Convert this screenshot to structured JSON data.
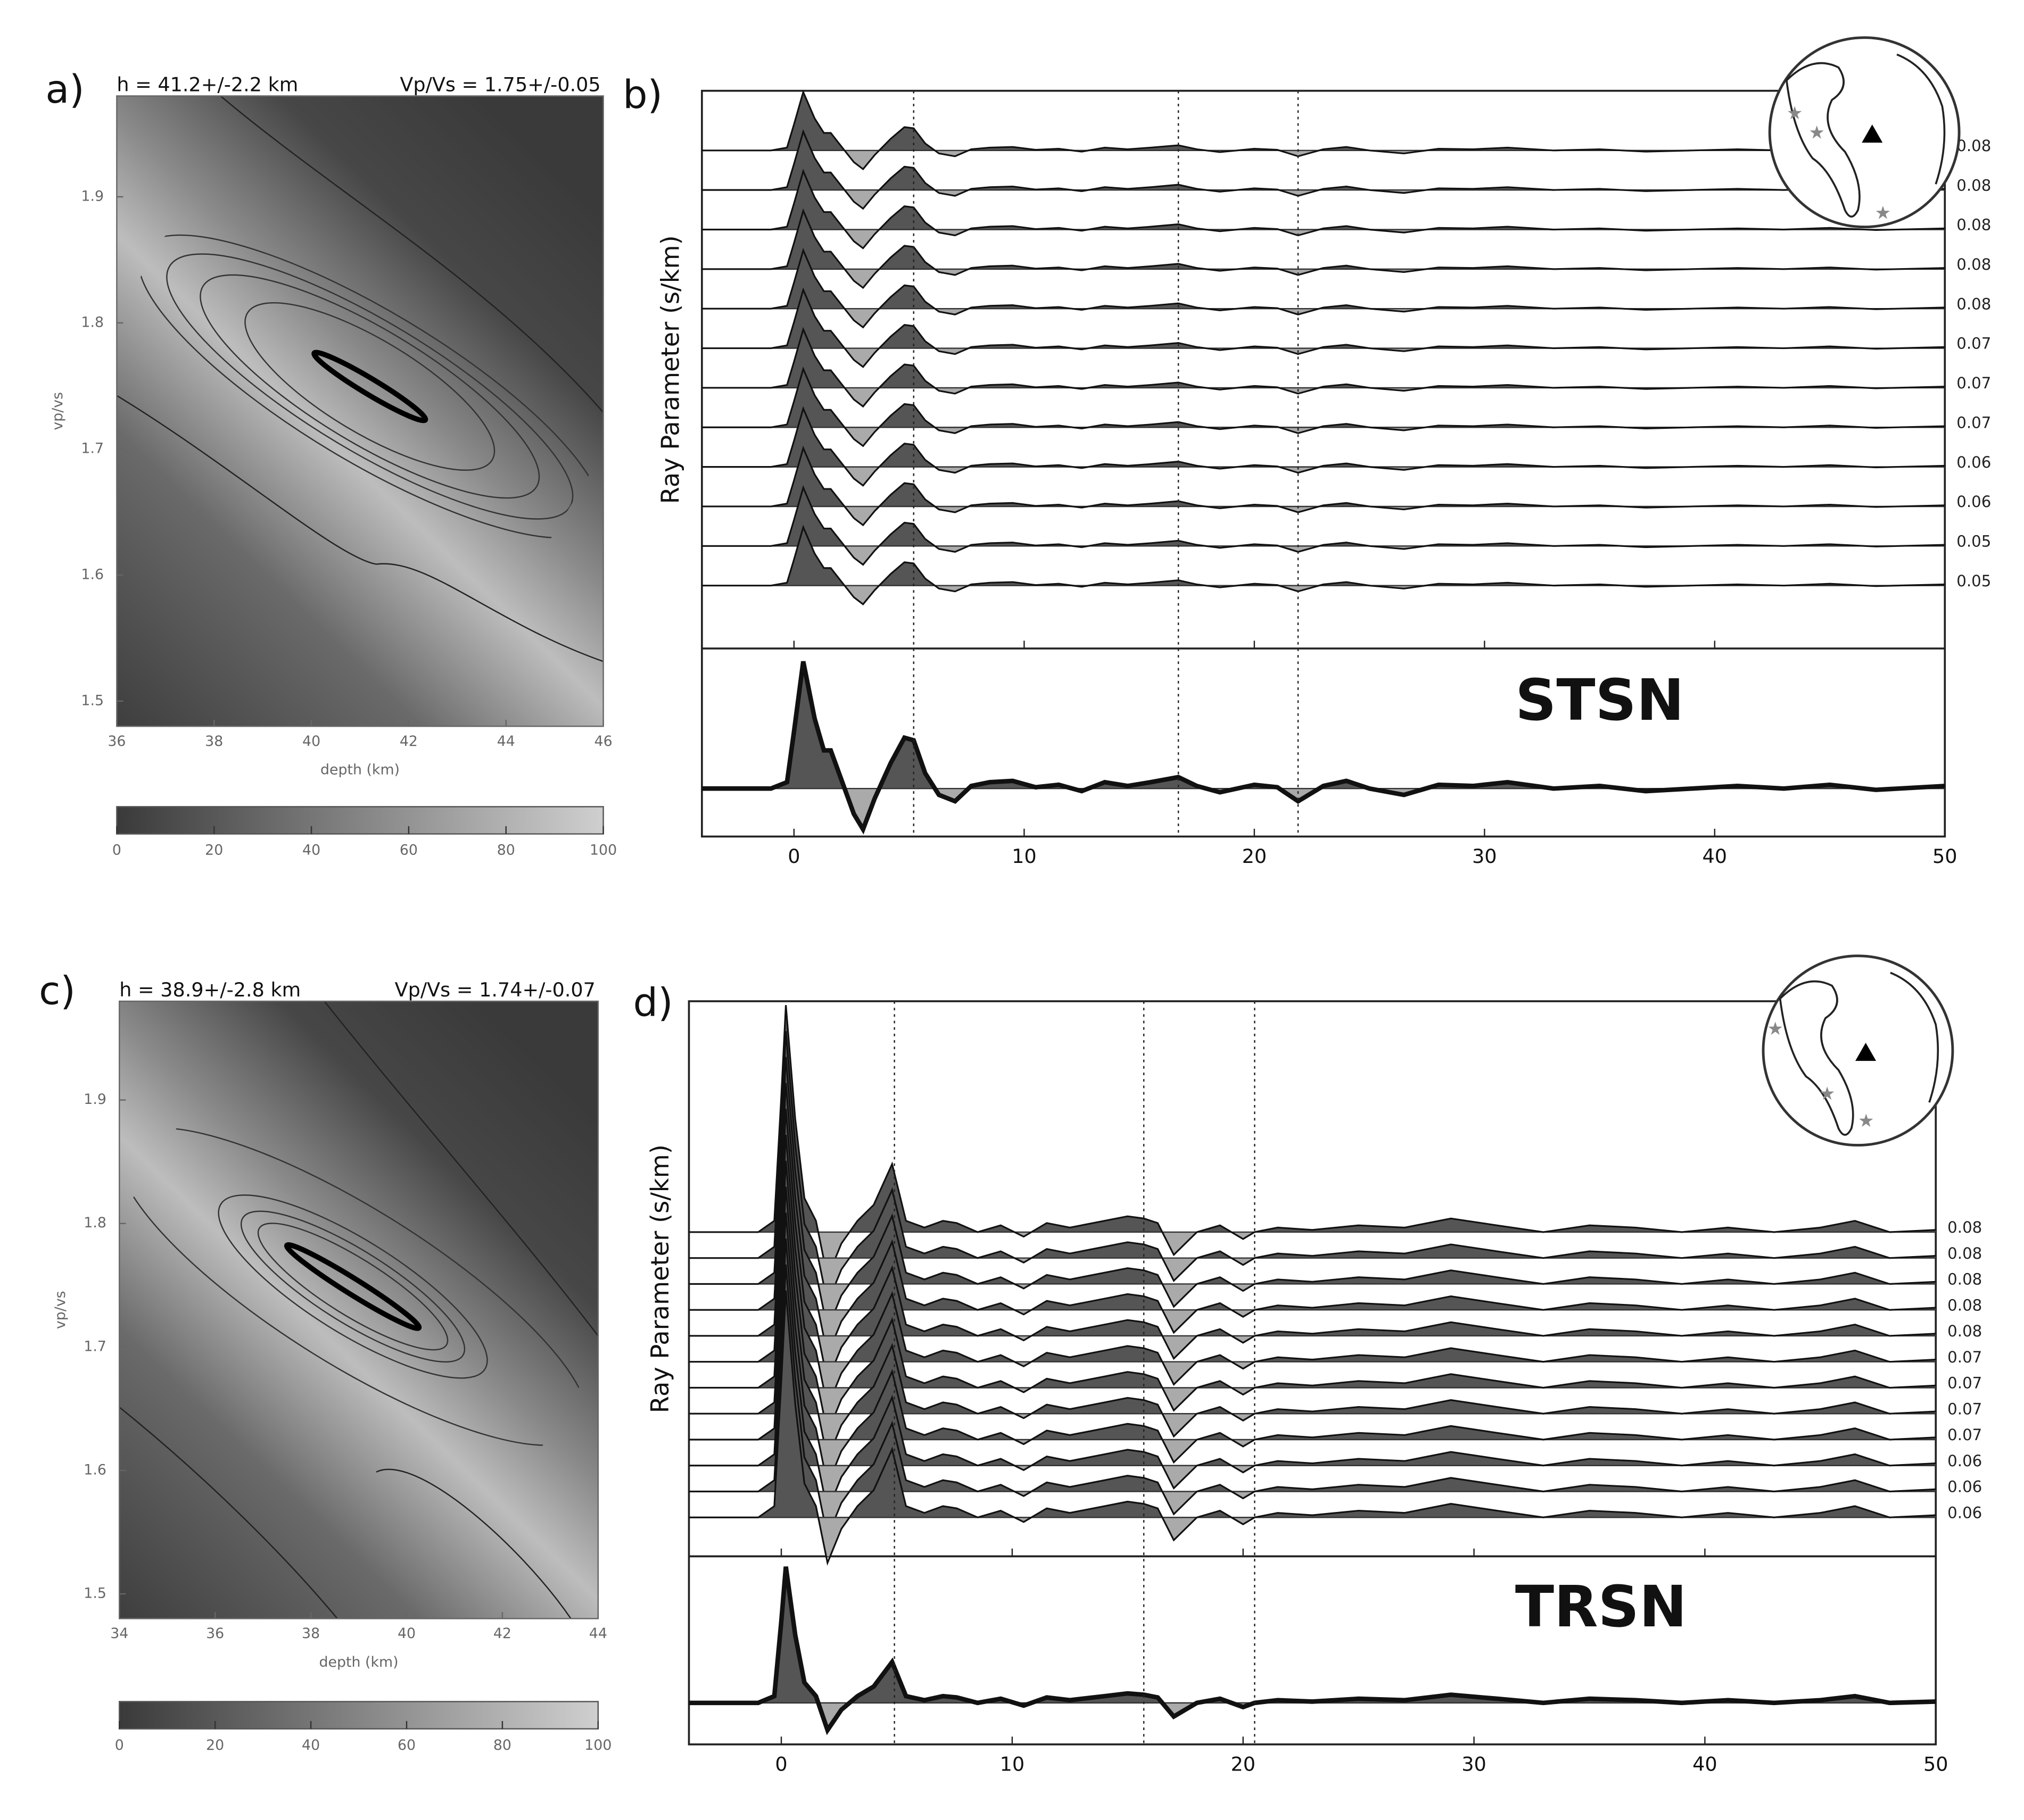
{
  "chart_data": [
    {
      "type": "hk",
      "panel_label": "a)",
      "title_h": "h = 41.2+/-2.2 km",
      "title_k": "Vp/Vs = 1.75+/-0.05",
      "xlabel": "depth (km)",
      "ylabel": "vp/vs",
      "xlim": [
        36,
        46
      ],
      "xticks": [
        36,
        38,
        40,
        42,
        44,
        46
      ],
      "ylim": [
        1.48,
        1.98
      ],
      "yticks": [
        1.5,
        1.6,
        1.7,
        1.8,
        1.9
      ],
      "colorbar_lim": [
        0,
        100
      ],
      "colorbar_ticks": [
        0,
        20,
        40,
        60,
        80,
        100
      ]
    },
    {
      "type": "rf",
      "panel_label": "b)",
      "ylabel": "Ray Parameter (s/km)",
      "station": "STSN",
      "xlim": [
        -4,
        50
      ],
      "xticks": [
        0,
        10,
        20,
        30,
        40,
        50
      ],
      "ray_parameters": [
        0.08,
        0.08,
        0.08,
        0.08,
        0.08,
        0.07,
        0.07,
        0.07,
        0.06,
        0.06,
        0.05,
        0.05
      ],
      "phase_times": [
        5.2,
        16.7,
        21.9
      ],
      "stack": {
        "x": [
          -4,
          -1,
          -0.3,
          0,
          0.4,
          0.9,
          1.3,
          1.6,
          2.1,
          2.6,
          3,
          3.5,
          4.2,
          4.8,
          5.2,
          5.7,
          6.3,
          7,
          7.7,
          8.5,
          9.5,
          10.5,
          11.5,
          12.5,
          13.5,
          14.5,
          15.5,
          16.7,
          17.5,
          18.5,
          20,
          21,
          21.9,
          23,
          24,
          25,
          26.5,
          28,
          29.5,
          31,
          33,
          35,
          37,
          39,
          41,
          43,
          45,
          47,
          50
        ],
        "values": [
          0,
          0,
          0.05,
          0.45,
          1.0,
          0.55,
          0.3,
          0.3,
          0.05,
          -0.2,
          -0.32,
          -0.08,
          0.2,
          0.4,
          0.38,
          0.12,
          -0.05,
          -0.1,
          0.02,
          0.05,
          0.06,
          0.01,
          0.03,
          -0.02,
          0.05,
          0.02,
          0.05,
          0.09,
          0.02,
          -0.03,
          0.03,
          0.01,
          -0.1,
          0.02,
          0.06,
          0.0,
          -0.05,
          0.03,
          0.02,
          0.05,
          0.0,
          0.02,
          -0.02,
          0.0,
          0.02,
          0.0,
          0.03,
          -0.01,
          0.02
        ]
      }
    },
    {
      "type": "hk",
      "panel_label": "c)",
      "title_h": "h = 38.9+/-2.8 km",
      "title_k": "Vp/Vs = 1.74+/-0.07",
      "xlabel": "depth (km)",
      "ylabel": "vp/vs",
      "xlim": [
        34,
        44
      ],
      "xticks": [
        34,
        36,
        38,
        40,
        42,
        44
      ],
      "ylim": [
        1.48,
        1.98
      ],
      "yticks": [
        1.5,
        1.6,
        1.7,
        1.8,
        1.9
      ],
      "colorbar_lim": [
        0,
        100
      ],
      "colorbar_ticks": [
        0,
        20,
        40,
        60,
        80,
        100
      ]
    },
    {
      "type": "rf",
      "panel_label": "d)",
      "ylabel": "Ray Parameter (s/km)",
      "station": "TRSN",
      "xlim": [
        -4,
        50
      ],
      "xticks": [
        0,
        10,
        20,
        30,
        40,
        50
      ],
      "ray_parameters": [
        0.08,
        0.08,
        0.08,
        0.08,
        0.08,
        0.07,
        0.07,
        0.07,
        0.07,
        0.06,
        0.06,
        0.06
      ],
      "phase_times": [
        4.9,
        15.7,
        20.5
      ],
      "stack": {
        "x": [
          -4,
          -1,
          -0.3,
          0,
          0.2,
          0.6,
          1,
          1.5,
          2,
          2.6,
          3.3,
          4,
          4.8,
          5.4,
          6.2,
          7,
          7.6,
          8.5,
          9.5,
          10.5,
          11.5,
          12.5,
          14,
          15,
          15.7,
          16.3,
          17,
          18,
          19,
          20,
          20.5,
          21.5,
          23,
          25,
          27,
          29,
          31,
          33,
          35,
          37,
          39,
          41,
          43,
          45,
          46.5,
          48,
          50
        ],
        "values": [
          0,
          0,
          0.05,
          0.6,
          1.0,
          0.5,
          0.15,
          0.05,
          -0.2,
          -0.05,
          0.05,
          0.12,
          0.3,
          0.05,
          0.02,
          0.05,
          0.04,
          0.0,
          0.03,
          -0.02,
          0.04,
          0.02,
          0.05,
          0.07,
          0.06,
          0.04,
          -0.1,
          0.0,
          0.03,
          -0.03,
          0.0,
          0.02,
          0.01,
          0.03,
          0.02,
          0.06,
          0.03,
          0.0,
          0.03,
          0.02,
          0.0,
          0.02,
          0.0,
          0.02,
          0.05,
          0.0,
          0.01
        ]
      }
    }
  ]
}
